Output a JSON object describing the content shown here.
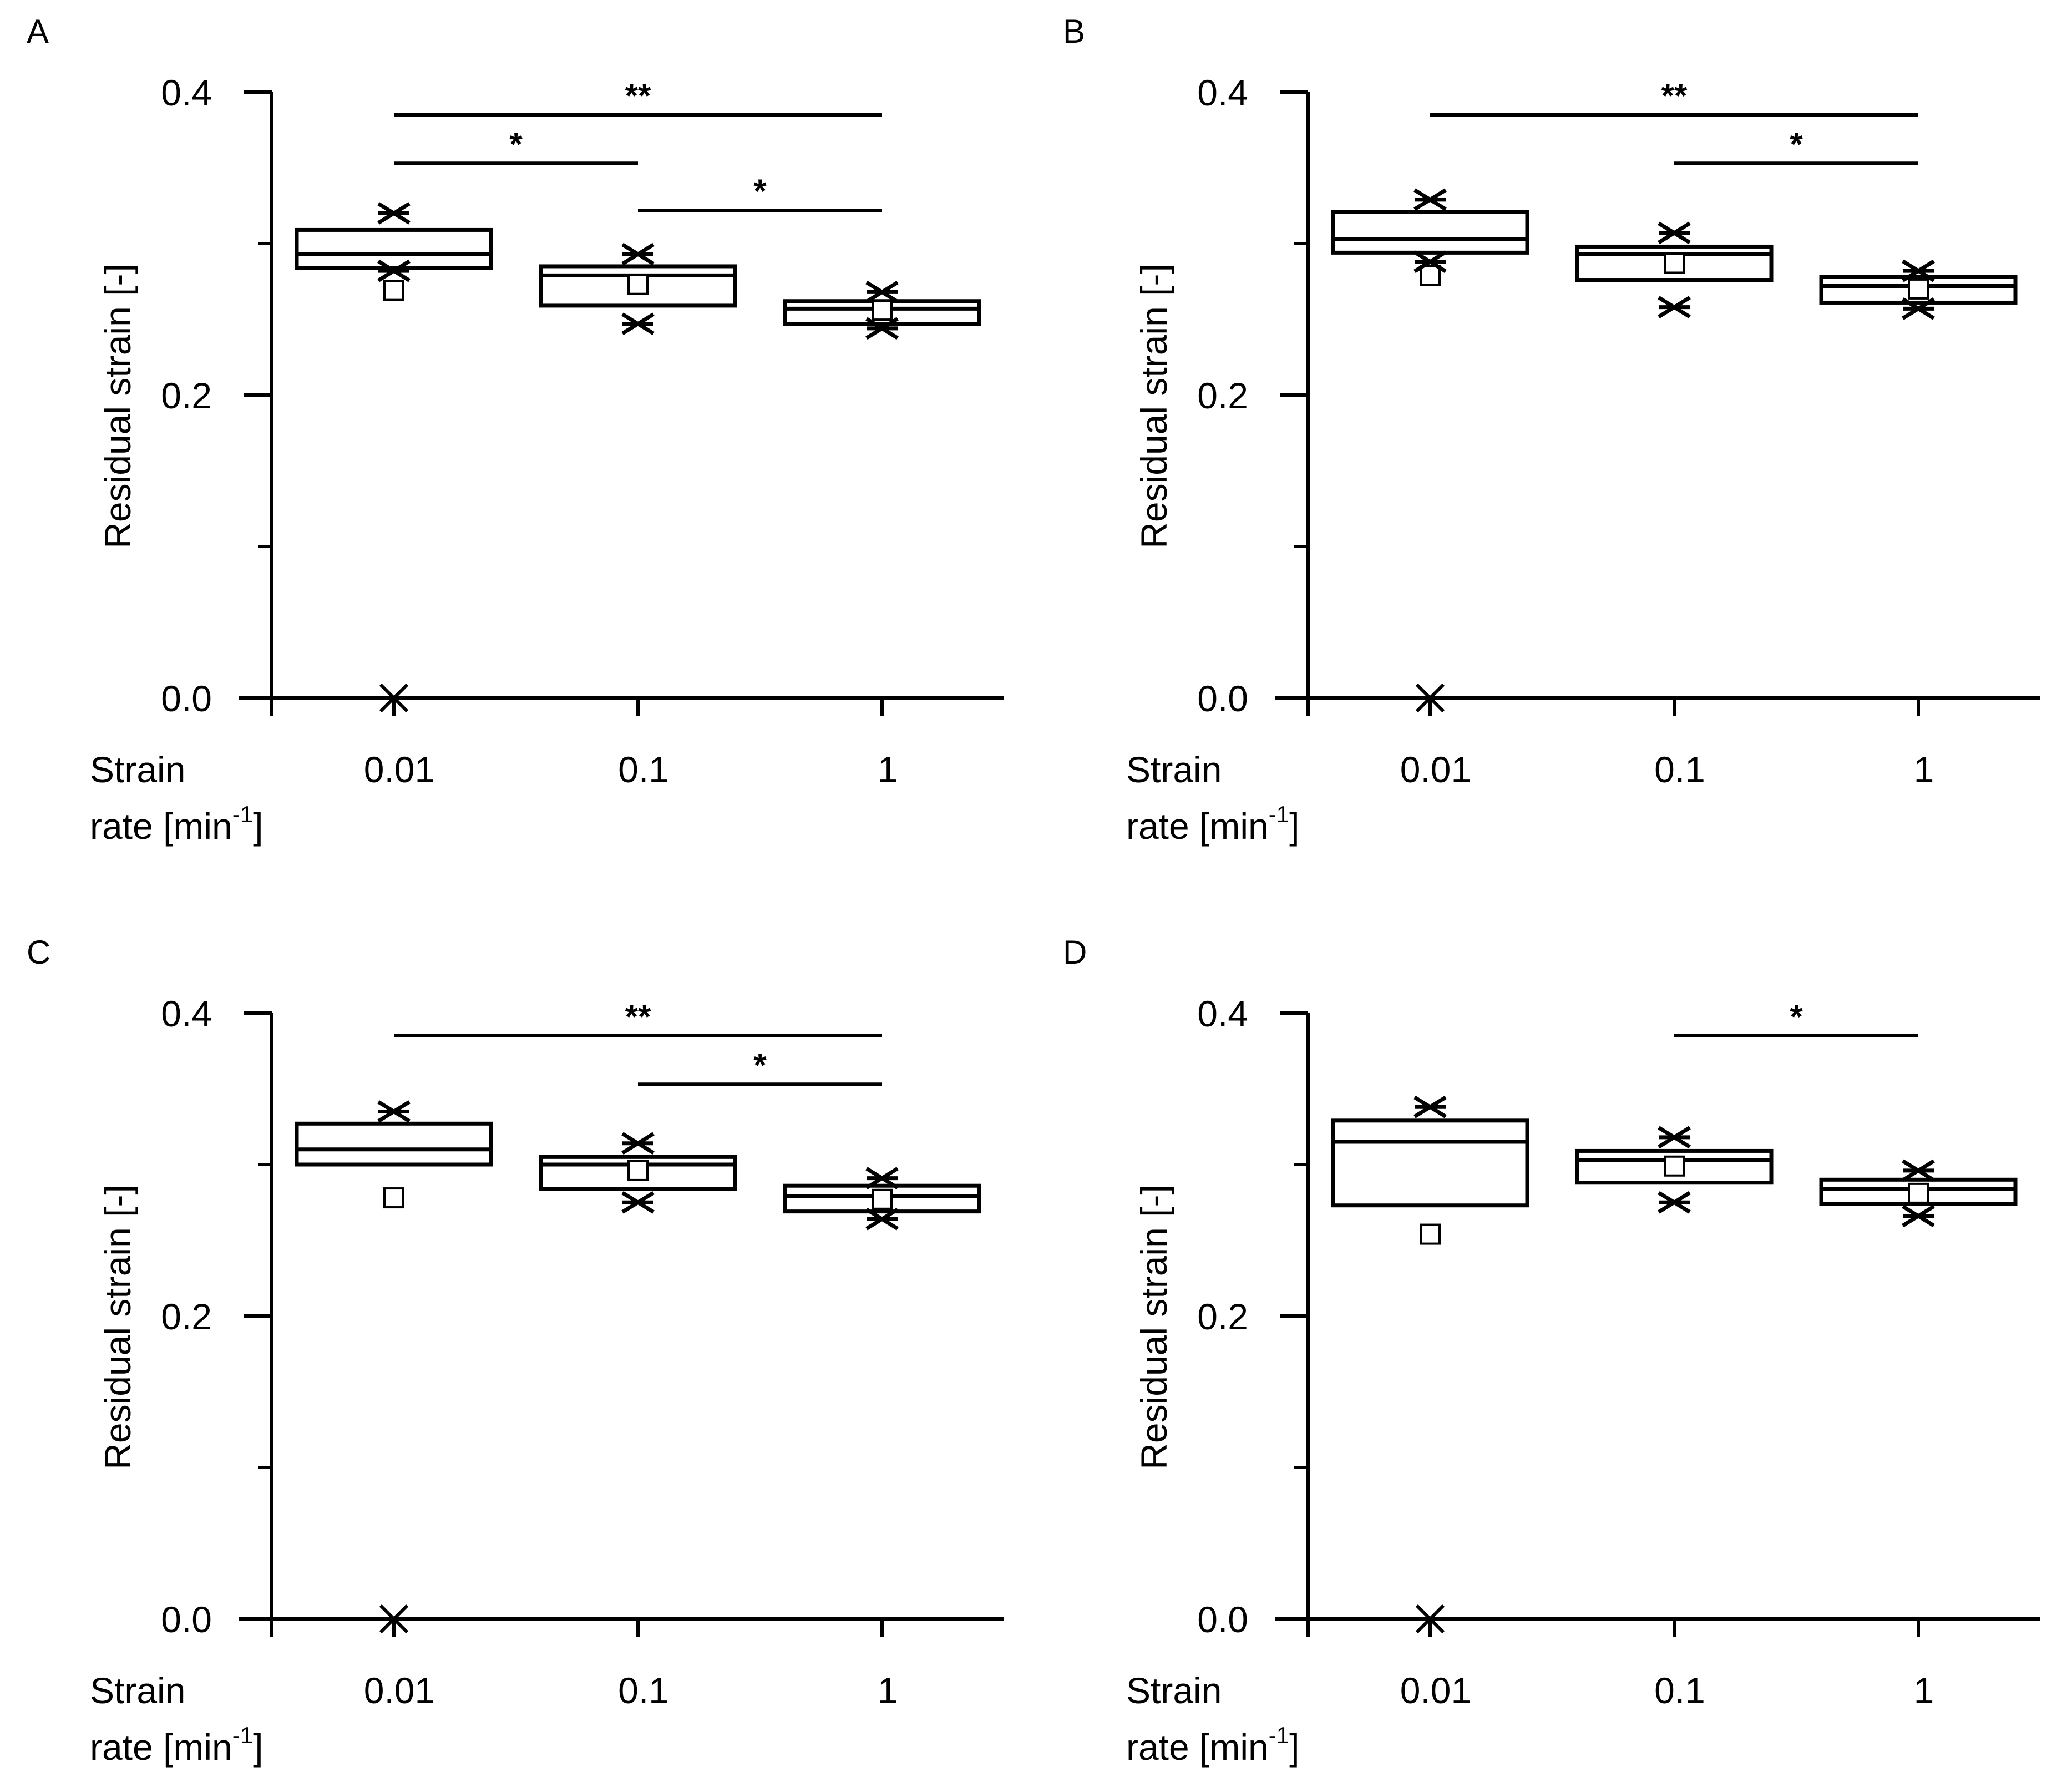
{
  "figure": {
    "x_caption_line1": "Strain",
    "x_caption_line2_prefix": "rate [min",
    "x_caption_line2_sup": "-1",
    "x_caption_line2_suffix": "]",
    "ylabel": "Residual strain [-]",
    "y_tick_labels": [
      "0.0",
      "0.2",
      "0.4"
    ],
    "colors": {
      "ink": "#000000",
      "background": "#ffffff"
    }
  },
  "chart_data": [
    {
      "type": "box",
      "panel": "A",
      "categories": [
        "0.01",
        "0.1",
        "1"
      ],
      "ylabel": "Residual strain [-]",
      "ylim": [
        0,
        0.4
      ],
      "y_ticks": [
        0,
        0.1,
        0.2,
        0.3,
        0.4
      ],
      "y_tick_labels": [
        "0.0",
        "0.2",
        "0.4"
      ],
      "boxes": [
        {
          "category": "0.01",
          "q1": 0.284,
          "median": 0.293,
          "q3": 0.309,
          "mean": 0.269,
          "markers": [
            0.0,
            0.282,
            0.32
          ]
        },
        {
          "category": "0.1",
          "q1": 0.259,
          "median": 0.279,
          "q3": 0.285,
          "mean": 0.273,
          "markers": [
            0.247,
            0.293
          ]
        },
        {
          "category": "1",
          "q1": 0.247,
          "median": 0.257,
          "q3": 0.262,
          "mean": 0.256,
          "markers": [
            0.244,
            0.268
          ]
        }
      ],
      "significance": [
        {
          "from": "0.01",
          "to": "1",
          "label": "**",
          "level": 0.385
        },
        {
          "from": "0.01",
          "to": "0.1",
          "label": "*",
          "level": 0.353
        },
        {
          "from": "0.1",
          "to": "1",
          "label": "*",
          "level": 0.322
        }
      ]
    },
    {
      "type": "box",
      "panel": "B",
      "categories": [
        "0.01",
        "0.1",
        "1"
      ],
      "ylabel": "Residual strain [-]",
      "ylim": [
        0,
        0.4
      ],
      "y_ticks": [
        0,
        0.1,
        0.2,
        0.3,
        0.4
      ],
      "y_tick_labels": [
        "0.0",
        "0.2",
        "0.4"
      ],
      "boxes": [
        {
          "category": "0.01",
          "q1": 0.294,
          "median": 0.303,
          "q3": 0.321,
          "mean": 0.279,
          "markers": [
            0.0,
            0.288,
            0.329
          ]
        },
        {
          "category": "0.1",
          "q1": 0.276,
          "median": 0.293,
          "q3": 0.298,
          "mean": 0.287,
          "markers": [
            0.258,
            0.307
          ]
        },
        {
          "category": "1",
          "q1": 0.261,
          "median": 0.272,
          "q3": 0.278,
          "mean": 0.27,
          "markers": [
            0.257,
            0.282
          ]
        }
      ],
      "significance": [
        {
          "from": "0.01",
          "to": "1",
          "label": "**",
          "level": 0.385
        },
        {
          "from": "0.1",
          "to": "1",
          "label": "*",
          "level": 0.353
        }
      ]
    },
    {
      "type": "box",
      "panel": "C",
      "categories": [
        "0.01",
        "0.1",
        "1"
      ],
      "ylabel": "Residual strain [-]",
      "ylim": [
        0,
        0.4
      ],
      "y_ticks": [
        0,
        0.1,
        0.2,
        0.3,
        0.4
      ],
      "y_tick_labels": [
        "0.0",
        "0.2",
        "0.4"
      ],
      "boxes": [
        {
          "category": "0.01",
          "q1": 0.3,
          "median": 0.31,
          "q3": 0.327,
          "mean": 0.278,
          "markers": [
            0.0,
            0.335
          ]
        },
        {
          "category": "0.1",
          "q1": 0.284,
          "median": 0.3,
          "q3": 0.305,
          "mean": 0.296,
          "markers": [
            0.275,
            0.314
          ]
        },
        {
          "category": "1",
          "q1": 0.269,
          "median": 0.279,
          "q3": 0.286,
          "mean": 0.277,
          "markers": [
            0.264,
            0.291
          ]
        }
      ],
      "significance": [
        {
          "from": "0.01",
          "to": "1",
          "label": "**",
          "level": 0.385
        },
        {
          "from": "0.1",
          "to": "1",
          "label": "*",
          "level": 0.353
        }
      ]
    },
    {
      "type": "box",
      "panel": "D",
      "categories": [
        "0.01",
        "0.1",
        "1"
      ],
      "ylabel": "Residual strain [-]",
      "ylim": [
        0,
        0.4
      ],
      "y_ticks": [
        0,
        0.1,
        0.2,
        0.3,
        0.4
      ],
      "y_tick_labels": [
        "0.0",
        "0.2",
        "0.4"
      ],
      "boxes": [
        {
          "category": "0.01",
          "q1": 0.273,
          "median": 0.315,
          "q3": 0.329,
          "mean": 0.254,
          "markers": [
            0.0,
            0.338
          ]
        },
        {
          "category": "0.1",
          "q1": 0.288,
          "median": 0.303,
          "q3": 0.309,
          "mean": 0.299,
          "markers": [
            0.275,
            0.318
          ]
        },
        {
          "category": "1",
          "q1": 0.274,
          "median": 0.284,
          "q3": 0.29,
          "mean": 0.281,
          "markers": [
            0.266,
            0.296
          ]
        }
      ],
      "significance": [
        {
          "from": "0.1",
          "to": "1",
          "label": "*",
          "level": 0.385
        }
      ]
    }
  ]
}
